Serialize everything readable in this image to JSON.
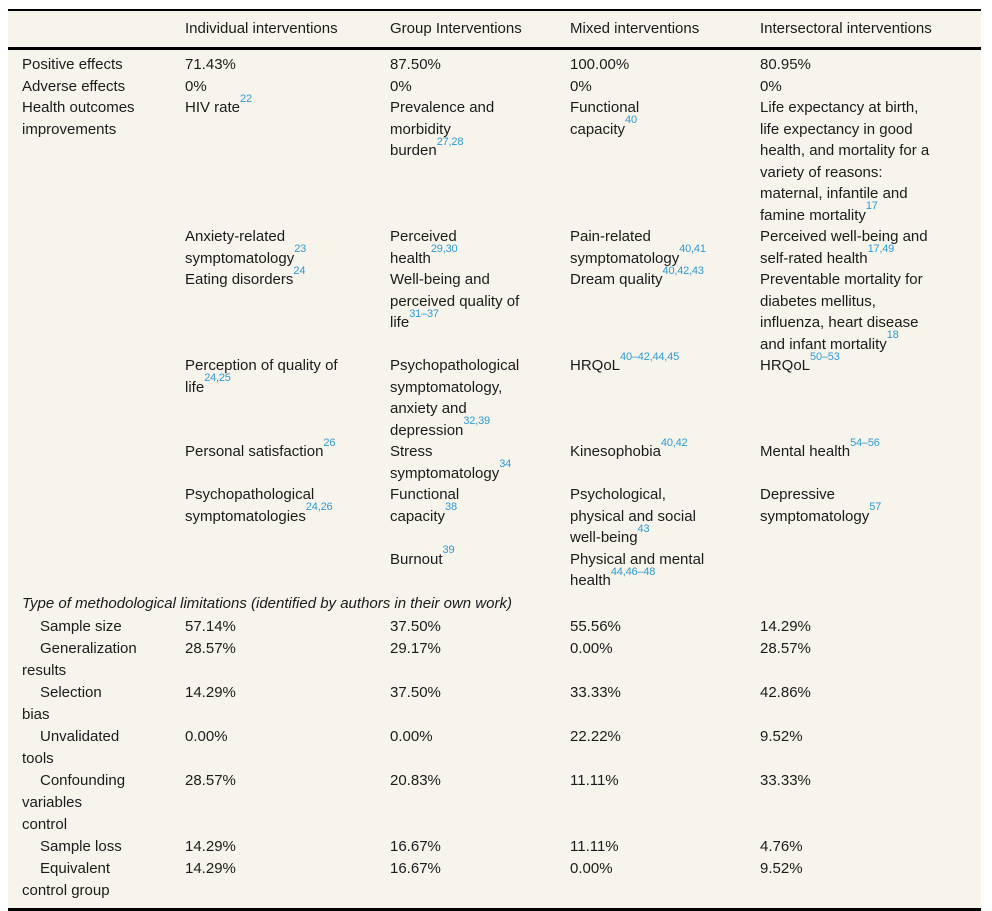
{
  "colors": {
    "table_background": "#f7f4ec",
    "text": "#1b1b1b",
    "citation_blue": "#2e9ad2",
    "rule_black": "#000000"
  },
  "header": {
    "columns": [
      "Individual interventions",
      "Group Interventions",
      "Mixed interventions",
      "Intersectoral interventions"
    ]
  },
  "effect_rows": [
    {
      "label": "Positive effects",
      "values": [
        "71.43%",
        "87.50%",
        "100.00%",
        "80.95%"
      ]
    },
    {
      "label": "Adverse effects",
      "values": [
        "0%",
        "0%",
        "0%",
        "0%"
      ]
    }
  ],
  "health_outcomes": {
    "label": "Health outcomes improvements",
    "subrows": [
      [
        {
          "text": "HIV rate",
          "sup": "22"
        },
        {
          "text": "Prevalence and morbidity burden",
          "sup": "27,28"
        },
        {
          "text": "Functional capacity",
          "sup": "40"
        },
        {
          "text": "Life expectancy at birth, life expectancy in good health, and mortality for a variety of reasons: maternal, infantile and famine mortality",
          "sup": "17"
        }
      ],
      [
        {
          "text": "Anxiety-related symptomatology",
          "sup": "23"
        },
        {
          "text": "Perceived health",
          "sup": "29,30"
        },
        {
          "text": "Pain-related symptomatology",
          "sup": "40,41"
        },
        {
          "text": "Perceived well-being and self-rated health",
          "sup": "17,49"
        }
      ],
      [
        {
          "text": "Eating disorders",
          "sup": "24"
        },
        {
          "text": "Well-being and perceived quality of life",
          "sup": "31–37"
        },
        {
          "text": "Dream quality",
          "sup": "40,42,43"
        },
        {
          "text": "Preventable mortality for diabetes mellitus, influenza, heart disease and infant mortality",
          "sup": "18"
        }
      ],
      [
        {
          "text": "Perception of quality of life",
          "sup": "24,25"
        },
        {
          "text": "Psychopathological symptomatology, anxiety and depression",
          "sup": "32,39"
        },
        {
          "text": "HRQoL",
          "sup": "40–42,44,45"
        },
        {
          "text": "HRQoL",
          "sup": "50–53"
        }
      ],
      [
        {
          "text": "Personal satisfaction",
          "sup": "26"
        },
        {
          "text": "Stress symptomatology",
          "sup": "34"
        },
        {
          "text": "Kinesophobia",
          "sup": "40,42"
        },
        {
          "text": "Mental health",
          "sup": "54–56"
        }
      ],
      [
        {
          "text": "Psychopathological symptomatologies",
          "sup": "24,26"
        },
        {
          "text": "Functional capacity",
          "sup": "38"
        },
        {
          "text": "Psychological, physical and social well-being",
          "sup": "43"
        },
        {
          "text": "Depressive symptomatology",
          "sup": "57"
        }
      ],
      [
        null,
        {
          "text": "Burnout",
          "sup": "39"
        },
        {
          "text": "Physical and mental health",
          "sup": "44,46–48"
        },
        null
      ]
    ]
  },
  "limitations": {
    "section_title": "Type of methodological limitations (identified by authors in their own work)",
    "rows": [
      {
        "label": "Sample size",
        "values": [
          "57.14%",
          "37.50%",
          "55.56%",
          "14.29%"
        ]
      },
      {
        "label": "Generalization results",
        "values": [
          "28.57%",
          "29.17%",
          "0.00%",
          "28.57%"
        ]
      },
      {
        "label": "Selection bias",
        "values": [
          "14.29%",
          "37.50%",
          "33.33%",
          "42.86%"
        ]
      },
      {
        "label": "Unvalidated tools",
        "values": [
          "0.00%",
          "0.00%",
          "22.22%",
          "9.52%"
        ]
      },
      {
        "label": "Confounding variables control",
        "values": [
          "28.57%",
          "20.83%",
          "11.11%",
          "33.33%"
        ]
      },
      {
        "label": "Sample loss",
        "values": [
          "14.29%",
          "16.67%",
          "11.11%",
          "4.76%"
        ]
      },
      {
        "label": "Equivalent control group",
        "values": [
          "14.29%",
          "16.67%",
          "0.00%",
          "9.52%"
        ]
      }
    ]
  }
}
